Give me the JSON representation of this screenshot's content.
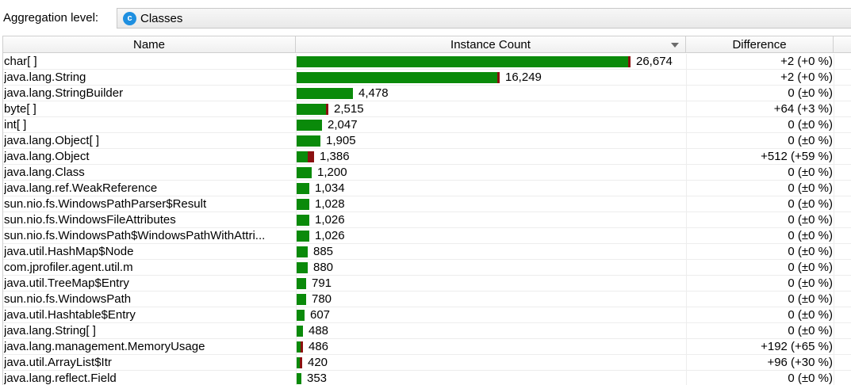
{
  "toolbar": {
    "aggregation_label": "Aggregation level:",
    "aggregation_value": "Classes",
    "aggregation_icon": "class-icon",
    "icon_letter": "c"
  },
  "table": {
    "columns": {
      "name": "Name",
      "instance_count": "Instance Count",
      "difference": "Difference"
    },
    "max_count": 26674,
    "rows": [
      {
        "name": "char[ ]",
        "count": 26674,
        "count_label": "26,674",
        "delta": 2,
        "difference": "+2 (+0 %)"
      },
      {
        "name": "java.lang.String",
        "count": 16249,
        "count_label": "16,249",
        "delta": 2,
        "difference": "+2 (+0 %)"
      },
      {
        "name": "java.lang.StringBuilder",
        "count": 4478,
        "count_label": "4,478",
        "delta": 0,
        "difference": "0 (±0 %)"
      },
      {
        "name": "byte[ ]",
        "count": 2515,
        "count_label": "2,515",
        "delta": 64,
        "difference": "+64 (+3 %)"
      },
      {
        "name": "int[ ]",
        "count": 2047,
        "count_label": "2,047",
        "delta": 0,
        "difference": "0 (±0 %)"
      },
      {
        "name": "java.lang.Object[ ]",
        "count": 1905,
        "count_label": "1,905",
        "delta": 0,
        "difference": "0 (±0 %)"
      },
      {
        "name": "java.lang.Object",
        "count": 1386,
        "count_label": "1,386",
        "delta": 512,
        "difference": "+512 (+59 %)"
      },
      {
        "name": "java.lang.Class",
        "count": 1200,
        "count_label": "1,200",
        "delta": 0,
        "difference": "0 (±0 %)"
      },
      {
        "name": "java.lang.ref.WeakReference",
        "count": 1034,
        "count_label": "1,034",
        "delta": 0,
        "difference": "0 (±0 %)"
      },
      {
        "name": "sun.nio.fs.WindowsPathParser$Result",
        "count": 1028,
        "count_label": "1,028",
        "delta": 0,
        "difference": "0 (±0 %)"
      },
      {
        "name": "sun.nio.fs.WindowsFileAttributes",
        "count": 1026,
        "count_label": "1,026",
        "delta": 0,
        "difference": "0 (±0 %)"
      },
      {
        "name": "sun.nio.fs.WindowsPath$WindowsPathWithAttri...",
        "count": 1026,
        "count_label": "1,026",
        "delta": 0,
        "difference": "0 (±0 %)"
      },
      {
        "name": "java.util.HashMap$Node",
        "count": 885,
        "count_label": "885",
        "delta": 0,
        "difference": "0 (±0 %)"
      },
      {
        "name": "com.jprofiler.agent.util.m",
        "count": 880,
        "count_label": "880",
        "delta": 0,
        "difference": "0 (±0 %)"
      },
      {
        "name": "java.util.TreeMap$Entry",
        "count": 791,
        "count_label": "791",
        "delta": 0,
        "difference": "0 (±0 %)"
      },
      {
        "name": "sun.nio.fs.WindowsPath",
        "count": 780,
        "count_label": "780",
        "delta": 0,
        "difference": "0 (±0 %)"
      },
      {
        "name": "java.util.Hashtable$Entry",
        "count": 607,
        "count_label": "607",
        "delta": 0,
        "difference": "0 (±0 %)"
      },
      {
        "name": "java.lang.String[ ]",
        "count": 488,
        "count_label": "488",
        "delta": 0,
        "difference": "0 (±0 %)"
      },
      {
        "name": "java.lang.management.MemoryUsage",
        "count": 486,
        "count_label": "486",
        "delta": 192,
        "difference": "+192 (+65 %)"
      },
      {
        "name": "java.util.ArrayList$Itr",
        "count": 420,
        "count_label": "420",
        "delta": 96,
        "difference": "+96 (+30 %)"
      },
      {
        "name": "java.lang.reflect.Field",
        "count": 353,
        "count_label": "353",
        "delta": 0,
        "difference": "0 (±0 %)"
      }
    ]
  },
  "colors": {
    "bar": "#0a8a0a",
    "bar_delta": "#8b1010",
    "icon": "#1e8fe0"
  }
}
